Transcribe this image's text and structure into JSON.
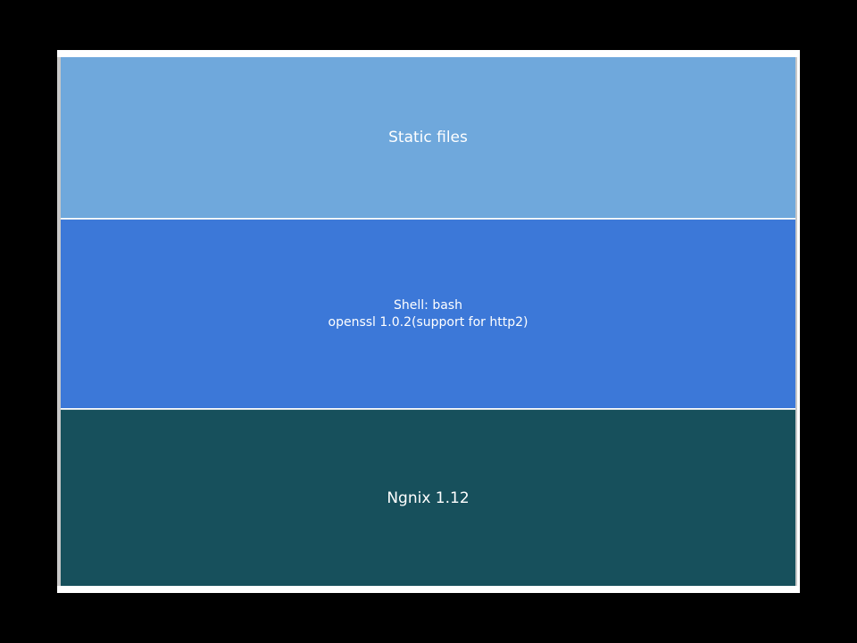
{
  "colors": {
    "background": "#000000",
    "frame": "#ffffff",
    "static_files": "#6fa8dc",
    "shell": "#3c78d8",
    "ngnix": "#17505c",
    "text": "#ffffff"
  },
  "layers": [
    {
      "name": "static-files",
      "lines": [
        "Static files"
      ]
    },
    {
      "name": "shell",
      "lines": [
        "Shell: bash",
        "openssl 1.0.2(support for http2)"
      ]
    },
    {
      "name": "ngnix",
      "lines": [
        "Ngnix 1.12"
      ]
    }
  ]
}
